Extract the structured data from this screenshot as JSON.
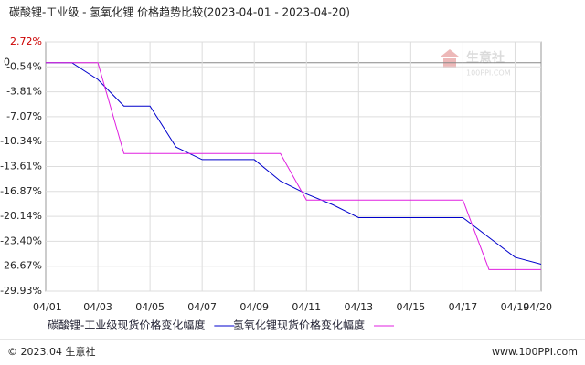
{
  "chart_data": {
    "type": "line",
    "title": "碳酸锂-工业级 - 氢氧化锂 价格趋势比较(2023-04-01 - 2023-04-20)",
    "categories": [
      "04/01",
      null,
      "04/03",
      null,
      "04/05",
      null,
      "04/07",
      null,
      "04/09",
      null,
      "04/11",
      null,
      "04/13",
      null,
      "04/15",
      null,
      "04/17",
      null,
      "04/19",
      "04/20"
    ],
    "series": [
      {
        "name": "碳酸锂-工业级现货价格变化幅度",
        "color": "#0000cc",
        "values": [
          0,
          0,
          -2.2,
          -5.68,
          -5.68,
          -11.06,
          -12.7,
          -12.7,
          -12.7,
          -15.5,
          -17.2,
          -18.6,
          -20.3,
          -20.3,
          -20.3,
          -20.3,
          -20.3,
          -22.9,
          -25.5,
          -26.4
        ]
      },
      {
        "name": "氢氧化锂现货价格变化幅度",
        "color": "#e020e0",
        "values": [
          0,
          0,
          0,
          -11.9,
          -11.9,
          -11.9,
          -11.9,
          -11.9,
          -11.9,
          -11.9,
          -18.0,
          -18.0,
          -18.0,
          -18.0,
          -18.0,
          -18.0,
          -18.0,
          -27.1,
          -27.1,
          -27.1
        ]
      }
    ],
    "ylim": [
      -29.93,
      2.72
    ],
    "yticks": [
      {
        "value": 2.72,
        "label": "2.72%"
      },
      0,
      {
        "value": -0.54,
        "label": "-0.54%"
      },
      {
        "value": -3.81,
        "label": "-3.81%"
      },
      {
        "value": -7.07,
        "label": "-7.07%"
      },
      {
        "value": -10.34,
        "label": "-10.34%"
      },
      {
        "value": -13.61,
        "label": "-13.61%"
      },
      {
        "value": -16.87,
        "label": "-16.87%"
      },
      {
        "value": -20.14,
        "label": "-20.14%"
      },
      {
        "value": -23.4,
        "label": "-23.40%"
      },
      {
        "value": -26.67,
        "label": "-26.67%"
      },
      {
        "value": -29.93,
        "label": "-29.93%"
      }
    ],
    "grid": true
  },
  "watermark": {
    "name": "生意社",
    "url": "100PPI.COM"
  },
  "footer": {
    "left": "© 2023.04 生意社",
    "right": "www.100PPI.com"
  }
}
